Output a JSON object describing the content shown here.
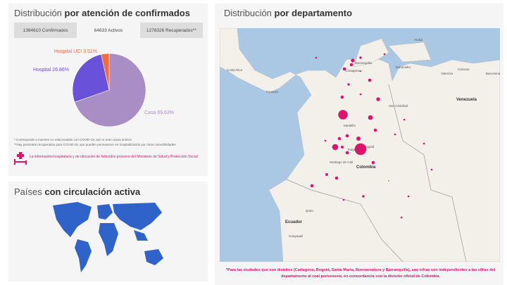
{
  "attention": {
    "title_light": "Distribución",
    "title_bold": "por atención de confirmados",
    "tabs": [
      "1384610 Confirmados",
      "64833 Activos",
      "1278326 Recuperados**"
    ],
    "active_tab": 1,
    "chart_data": {
      "type": "pie",
      "slices": [
        {
          "label": "Casa 69.63%",
          "value": 69.63,
          "color": "#a98ec6"
        },
        {
          "label": "Hospital 26.86%",
          "value": 26.86,
          "color": "#6a51d9"
        },
        {
          "label": "Hospital UCI 3.51%",
          "value": 3.51,
          "color": "#f46a3d"
        }
      ]
    },
    "notes": [
      "* Corresponde a muertes no relacionadas con COVID-19, aún si eran casos activos",
      "**Hay pacientes recuperados para COVID-19, que pueden permanecer en hospitalización por otras comorbilidades"
    ],
    "info": "La información hospitalaria y de ubicación de fallecidos proviene del Ministerio de Salud y Protección Social"
  },
  "countries": {
    "title_light": "Países",
    "title_bold": "con circulación activa"
  },
  "department": {
    "title_light": "Distribución",
    "title_bold": "por departamento",
    "map_labels": {
      "aruba": "Aruba",
      "barranquilla": "Barranquilla",
      "cartagena": "Cartagena",
      "maracaibo": "Maracaibo",
      "caracas": "Caracas",
      "valencia": "Valencia",
      "barcelona": "Barcelona",
      "costa_rica": "Costa Rica",
      "panama": "Panamá",
      "venezuela": "Venezuela",
      "san_cristobal": "San Cristóbal",
      "medellin": "Medellín",
      "bogota": "Bogotá",
      "ibague": "Ibagué",
      "cali": "Santiago de Cali",
      "colombia": "Colombia",
      "quito": "Quito",
      "ecuador": "Ecuador",
      "guayaquil": "Guayaquil"
    },
    "footnote": "*Para las ciudades que son distritos (Cartagena, Bogotá, Santa Marta, Buenaventura y Barranquilla), sus cifras son independientes a las cifras del departamento al cual pertenecen, en concordancia con la división oficial de Colombia."
  },
  "colors": {
    "accent": "#e0136c",
    "sea": "#aac8e4",
    "land": "#f3f0ea",
    "world": "#2f63c9"
  }
}
